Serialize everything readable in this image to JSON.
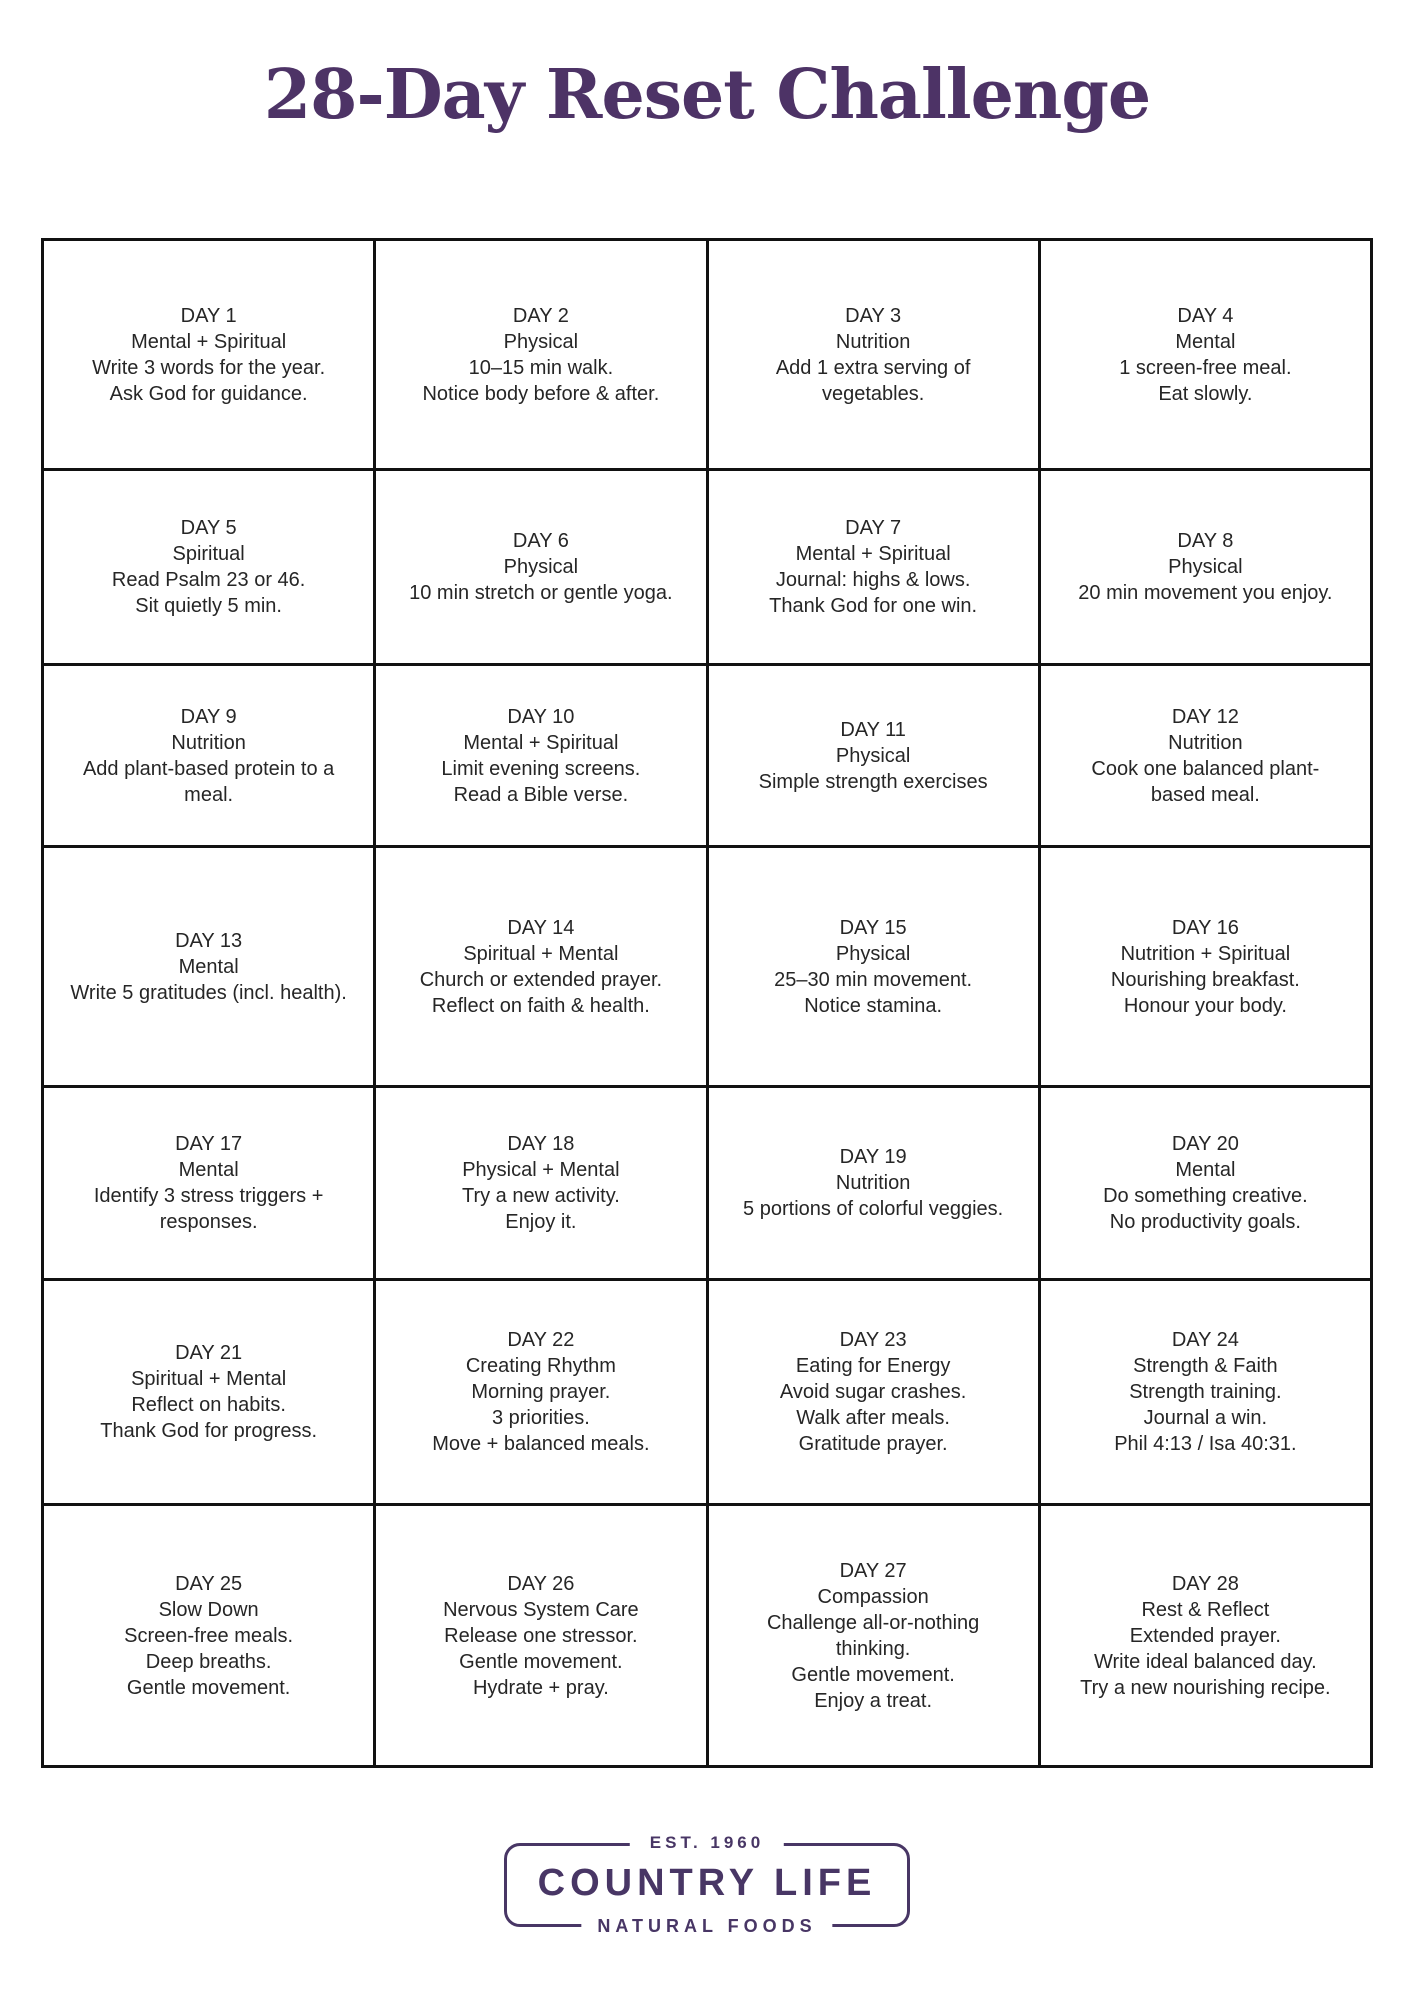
{
  "page": {
    "title": "28-Day Reset Challenge"
  },
  "colors": {
    "title": "#4d3366",
    "logo": "#483665",
    "text": "#262626",
    "grid_border": "#111111"
  },
  "grid": {
    "columns": 4,
    "cells": [
      {
        "day": "DAY 1",
        "category": "Mental + Spiritual",
        "tasks": [
          "Write 3 words for the year.",
          "Ask God for guidance."
        ]
      },
      {
        "day": "DAY 2",
        "category": "Physical",
        "tasks": [
          "10–15 min walk.",
          "Notice body before & after."
        ]
      },
      {
        "day": "DAY 3",
        "category": "Nutrition",
        "tasks": [
          "Add 1 extra serving of vegetables."
        ]
      },
      {
        "day": "DAY 4",
        "category": "Mental",
        "tasks": [
          "1 screen-free meal.",
          "Eat slowly."
        ]
      },
      {
        "day": "DAY 5",
        "category": "Spiritual",
        "tasks": [
          "Read Psalm 23 or 46.",
          "Sit quietly 5 min."
        ]
      },
      {
        "day": "DAY 6",
        "category": "Physical",
        "tasks": [
          "10 min stretch or gentle yoga."
        ]
      },
      {
        "day": "DAY 7",
        "category": "Mental + Spiritual",
        "tasks": [
          "Journal: highs & lows.",
          "Thank God for one win."
        ]
      },
      {
        "day": "DAY 8",
        "category": "Physical",
        "tasks": [
          "20 min movement you enjoy."
        ]
      },
      {
        "day": "DAY 9",
        "category": "Nutrition",
        "tasks": [
          "Add plant-based protein to a meal."
        ]
      },
      {
        "day": "DAY 10",
        "category": "Mental + Spiritual",
        "tasks": [
          "Limit evening screens.",
          "Read a Bible verse."
        ]
      },
      {
        "day": "DAY 11",
        "category": "Physical",
        "tasks": [
          "Simple strength exercises"
        ]
      },
      {
        "day": "DAY 12",
        "category": "Nutrition",
        "tasks": [
          "Cook one balanced plant-based meal."
        ]
      },
      {
        "day": "DAY 13",
        "category": "Mental",
        "tasks": [
          "Write 5 gratitudes (incl. health)."
        ]
      },
      {
        "day": "DAY 14",
        "category": "Spiritual + Mental",
        "tasks": [
          "Church or extended prayer.",
          "Reflect on faith & health."
        ]
      },
      {
        "day": "DAY 15",
        "category": "Physical",
        "tasks": [
          "25–30 min movement.",
          "Notice stamina."
        ]
      },
      {
        "day": "DAY 16",
        "category": "Nutrition + Spiritual",
        "tasks": [
          "Nourishing breakfast.",
          "Honour your body."
        ]
      },
      {
        "day": "DAY 17",
        "category": "Mental",
        "tasks": [
          "Identify 3 stress triggers + responses."
        ]
      },
      {
        "day": "DAY 18",
        "category": "Physical + Mental",
        "tasks": [
          "Try a new activity.",
          "Enjoy it."
        ]
      },
      {
        "day": "DAY 19",
        "category": "Nutrition",
        "tasks": [
          "5 portions of colorful veggies."
        ]
      },
      {
        "day": "DAY 20",
        "category": "Mental",
        "tasks": [
          "Do something creative.",
          "No productivity goals."
        ]
      },
      {
        "day": "DAY 21",
        "category": "Spiritual + Mental",
        "tasks": [
          "Reflect on habits.",
          "Thank God for progress."
        ]
      },
      {
        "day": "DAY 22",
        "category": "Creating Rhythm",
        "tasks": [
          "Morning prayer.",
          "3 priorities.",
          "Move + balanced meals."
        ]
      },
      {
        "day": "DAY 23",
        "category": "Eating for Energy",
        "tasks": [
          "Avoid sugar crashes.",
          "Walk after meals.",
          "Gratitude prayer."
        ]
      },
      {
        "day": "DAY 24",
        "category": "Strength & Faith",
        "tasks": [
          "Strength training.",
          "Journal a win.",
          "Phil 4:13 / Isa 40:31."
        ]
      },
      {
        "day": "DAY 25",
        "category": "Slow Down",
        "tasks": [
          "Screen-free meals.",
          "Deep breaths.",
          "Gentle movement."
        ]
      },
      {
        "day": "DAY 26",
        "category": "Nervous System Care",
        "tasks": [
          "Release one stressor.",
          "Gentle movement.",
          "Hydrate + pray."
        ]
      },
      {
        "day": "DAY 27",
        "category": "Compassion",
        "tasks": [
          "Challenge all-or-nothing thinking.",
          "Gentle movement.",
          "Enjoy a treat."
        ]
      },
      {
        "day": "DAY 28",
        "category": "Rest & Reflect",
        "tasks": [
          "Extended prayer.",
          "Write ideal balanced day.",
          "Try a new nourishing recipe."
        ]
      }
    ]
  },
  "logo": {
    "established": "EST. 1960",
    "name": "COUNTRY LIFE",
    "tagline": "NATURAL FOODS"
  }
}
